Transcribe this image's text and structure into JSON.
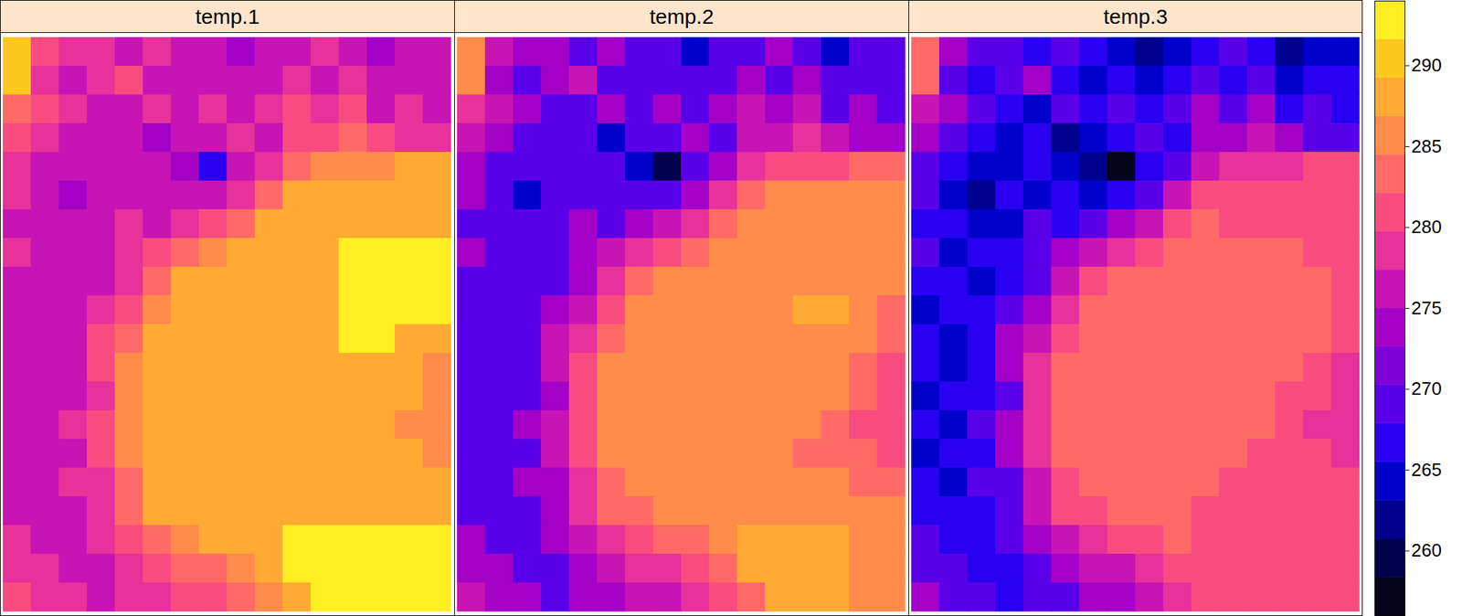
{
  "chart_data": {
    "type": "heatmap",
    "tick_labels": false,
    "color_range": [
      256,
      294
    ],
    "color_ticks": [
      260,
      265,
      270,
      275,
      280,
      285,
      290
    ],
    "colors": [
      "#05051c",
      "#00004d",
      "#000090",
      "#0000cc",
      "#2a00f0",
      "#5a00e8",
      "#8000d8",
      "#a400c8",
      "#c814b4",
      "#e6329a",
      "#f84c80",
      "#ff6a66",
      "#ff8c4a",
      "#ffaa33",
      "#ffc81e",
      "#ffee22"
    ],
    "panels": [
      {
        "title": "temp.1",
        "cells": [
          [
            290,
            281,
            279,
            279,
            277,
            279,
            277,
            275,
            273,
            275,
            277,
            279,
            277,
            273,
            275,
            275
          ],
          [
            290,
            279,
            277,
            279,
            281,
            277,
            275,
            277,
            275,
            277,
            279,
            277,
            279,
            275,
            277,
            277
          ],
          [
            283,
            281,
            279,
            277,
            275,
            279,
            277,
            279,
            277,
            279,
            281,
            279,
            281,
            277,
            279,
            277
          ],
          [
            281,
            279,
            277,
            275,
            277,
            273,
            275,
            277,
            279,
            277,
            281,
            281,
            283,
            281,
            279,
            279
          ],
          [
            279,
            277,
            275,
            275,
            277,
            275,
            273,
            266,
            277,
            279,
            283,
            285,
            285,
            285,
            287,
            287
          ],
          [
            279,
            275,
            273,
            277,
            275,
            277,
            275,
            277,
            279,
            283,
            287,
            289,
            289,
            289,
            289,
            289
          ],
          [
            277,
            277,
            275,
            275,
            279,
            277,
            279,
            281,
            283,
            287,
            289,
            289,
            289,
            289,
            289,
            289
          ],
          [
            279,
            275,
            277,
            277,
            279,
            281,
            283,
            285,
            287,
            289,
            289,
            289,
            292,
            292,
            292,
            292
          ],
          [
            277,
            277,
            275,
            277,
            279,
            283,
            287,
            289,
            289,
            289,
            289,
            289,
            292,
            292,
            292,
            292
          ],
          [
            275,
            277,
            277,
            279,
            281,
            285,
            289,
            289,
            289,
            289,
            289,
            289,
            292,
            292,
            292,
            292
          ],
          [
            277,
            275,
            277,
            281,
            283,
            287,
            289,
            289,
            289,
            289,
            289,
            289,
            292,
            292,
            289,
            287
          ],
          [
            277,
            275,
            277,
            281,
            285,
            289,
            289,
            289,
            289,
            289,
            289,
            289,
            289,
            289,
            287,
            285
          ],
          [
            275,
            277,
            277,
            279,
            285,
            289,
            289,
            289,
            289,
            289,
            289,
            289,
            289,
            289,
            287,
            285
          ],
          [
            277,
            275,
            279,
            281,
            285,
            289,
            289,
            289,
            289,
            289,
            289,
            289,
            289,
            287,
            285,
            285
          ],
          [
            275,
            277,
            277,
            281,
            285,
            289,
            289,
            289,
            289,
            289,
            289,
            289,
            287,
            287,
            287,
            285
          ],
          [
            277,
            275,
            279,
            279,
            283,
            287,
            289,
            289,
            289,
            289,
            289,
            289,
            289,
            289,
            287,
            287
          ],
          [
            277,
            277,
            277,
            279,
            283,
            287,
            287,
            289,
            289,
            289,
            289,
            289,
            289,
            289,
            289,
            289
          ],
          [
            279,
            277,
            277,
            279,
            281,
            283,
            285,
            287,
            287,
            289,
            292,
            292,
            292,
            292,
            292,
            292
          ],
          [
            279,
            279,
            277,
            277,
            279,
            281,
            283,
            283,
            285,
            287,
            292,
            292,
            292,
            292,
            292,
            292
          ],
          [
            281,
            279,
            279,
            277,
            279,
            279,
            281,
            281,
            283,
            285,
            287,
            292,
            292,
            292,
            292,
            292
          ]
        ]
      },
      {
        "title": "temp.2",
        "cells": [
          [
            285,
            276,
            273,
            273,
            270,
            273,
            270,
            268,
            265,
            268,
            270,
            273,
            270,
            265,
            268,
            268
          ],
          [
            285,
            273,
            270,
            273,
            276,
            270,
            268,
            270,
            268,
            270,
            273,
            270,
            273,
            268,
            270,
            270
          ],
          [
            278,
            276,
            273,
            270,
            268,
            273,
            270,
            273,
            270,
            273,
            276,
            273,
            276,
            270,
            273,
            270
          ],
          [
            276,
            273,
            270,
            268,
            270,
            265,
            268,
            270,
            273,
            270,
            276,
            276,
            278,
            276,
            273,
            273
          ],
          [
            273,
            270,
            268,
            268,
            270,
            268,
            265,
            260,
            270,
            273,
            278,
            281,
            281,
            281,
            283,
            283
          ],
          [
            273,
            268,
            265,
            270,
            268,
            270,
            268,
            270,
            273,
            278,
            283,
            286,
            286,
            286,
            286,
            286
          ],
          [
            270,
            270,
            268,
            268,
            273,
            270,
            273,
            276,
            278,
            283,
            286,
            286,
            286,
            286,
            286,
            286
          ],
          [
            273,
            268,
            270,
            270,
            273,
            276,
            278,
            281,
            283,
            286,
            286,
            286,
            286,
            286,
            286,
            286
          ],
          [
            270,
            270,
            268,
            270,
            273,
            278,
            283,
            286,
            286,
            286,
            286,
            286,
            286,
            286,
            286,
            286
          ],
          [
            268,
            270,
            270,
            273,
            276,
            281,
            286,
            286,
            286,
            286,
            286,
            286,
            288,
            288,
            286,
            283
          ],
          [
            270,
            268,
            270,
            276,
            278,
            283,
            286,
            286,
            286,
            286,
            286,
            286,
            286,
            286,
            286,
            283
          ],
          [
            270,
            268,
            270,
            276,
            281,
            286,
            286,
            286,
            286,
            286,
            286,
            286,
            286,
            286,
            283,
            281
          ],
          [
            268,
            270,
            270,
            273,
            281,
            286,
            286,
            286,
            286,
            286,
            286,
            286,
            286,
            286,
            283,
            281
          ],
          [
            270,
            268,
            273,
            276,
            281,
            286,
            286,
            286,
            286,
            286,
            286,
            286,
            286,
            283,
            281,
            281
          ],
          [
            268,
            270,
            270,
            276,
            281,
            286,
            286,
            286,
            286,
            286,
            286,
            286,
            283,
            283,
            283,
            281
          ],
          [
            270,
            268,
            273,
            273,
            278,
            283,
            286,
            286,
            286,
            286,
            286,
            286,
            286,
            286,
            283,
            283
          ],
          [
            270,
            270,
            270,
            273,
            278,
            283,
            283,
            286,
            286,
            286,
            286,
            286,
            286,
            286,
            286,
            286
          ],
          [
            273,
            270,
            270,
            273,
            276,
            278,
            281,
            283,
            283,
            286,
            289,
            289,
            289,
            289,
            286,
            286
          ],
          [
            273,
            273,
            270,
            270,
            273,
            276,
            278,
            278,
            281,
            283,
            289,
            289,
            289,
            289,
            286,
            286
          ],
          [
            276,
            273,
            273,
            270,
            273,
            273,
            276,
            276,
            278,
            281,
            283,
            288,
            288,
            288,
            286,
            286
          ]
        ]
      },
      {
        "title": "temp.3",
        "cells": [
          [
            283,
            273,
            270,
            270,
            267,
            270,
            267,
            264,
            262,
            264,
            267,
            270,
            267,
            262,
            264,
            264
          ],
          [
            283,
            270,
            267,
            270,
            273,
            267,
            264,
            267,
            264,
            267,
            270,
            267,
            270,
            264,
            267,
            267
          ],
          [
            276,
            273,
            270,
            267,
            264,
            270,
            267,
            270,
            267,
            270,
            273,
            270,
            273,
            267,
            270,
            267
          ],
          [
            273,
            270,
            267,
            264,
            267,
            262,
            264,
            267,
            270,
            267,
            273,
            273,
            276,
            273,
            270,
            270
          ],
          [
            270,
            267,
            264,
            264,
            267,
            264,
            262,
            258,
            267,
            270,
            276,
            278,
            278,
            278,
            281,
            281
          ],
          [
            270,
            264,
            262,
            267,
            264,
            267,
            264,
            267,
            270,
            276,
            281,
            282,
            282,
            282,
            282,
            282
          ],
          [
            267,
            267,
            264,
            264,
            270,
            267,
            270,
            273,
            276,
            281,
            284,
            282,
            282,
            282,
            282,
            282
          ],
          [
            270,
            264,
            267,
            267,
            270,
            273,
            276,
            278,
            281,
            284,
            284,
            284,
            284,
            284,
            282,
            282
          ],
          [
            267,
            267,
            264,
            267,
            270,
            276,
            281,
            284,
            284,
            284,
            284,
            284,
            284,
            284,
            284,
            282
          ],
          [
            264,
            267,
            267,
            270,
            273,
            278,
            284,
            284,
            284,
            284,
            284,
            284,
            284,
            284,
            284,
            281
          ],
          [
            267,
            264,
            267,
            273,
            276,
            281,
            284,
            284,
            284,
            284,
            284,
            284,
            284,
            284,
            284,
            281
          ],
          [
            267,
            264,
            267,
            273,
            278,
            284,
            284,
            284,
            284,
            284,
            284,
            284,
            284,
            284,
            281,
            278
          ],
          [
            264,
            267,
            267,
            270,
            278,
            284,
            284,
            284,
            284,
            284,
            284,
            284,
            284,
            282,
            281,
            278
          ],
          [
            267,
            264,
            270,
            273,
            278,
            284,
            284,
            284,
            284,
            284,
            284,
            284,
            284,
            281,
            278,
            278
          ],
          [
            264,
            267,
            267,
            273,
            278,
            284,
            284,
            284,
            284,
            284,
            284,
            284,
            281,
            281,
            281,
            278
          ],
          [
            267,
            264,
            270,
            270,
            276,
            281,
            284,
            284,
            284,
            284,
            284,
            282,
            282,
            282,
            281,
            281
          ],
          [
            267,
            267,
            267,
            270,
            276,
            281,
            281,
            284,
            284,
            284,
            282,
            282,
            282,
            282,
            282,
            282
          ],
          [
            270,
            267,
            267,
            270,
            273,
            276,
            278,
            281,
            281,
            284,
            282,
            282,
            282,
            282,
            282,
            282
          ],
          [
            270,
            270,
            267,
            267,
            270,
            273,
            276,
            276,
            278,
            281,
            282,
            282,
            282,
            282,
            282,
            282
          ],
          [
            273,
            270,
            270,
            267,
            270,
            270,
            273,
            273,
            276,
            278,
            281,
            282,
            282,
            282,
            282,
            282
          ]
        ]
      }
    ]
  }
}
